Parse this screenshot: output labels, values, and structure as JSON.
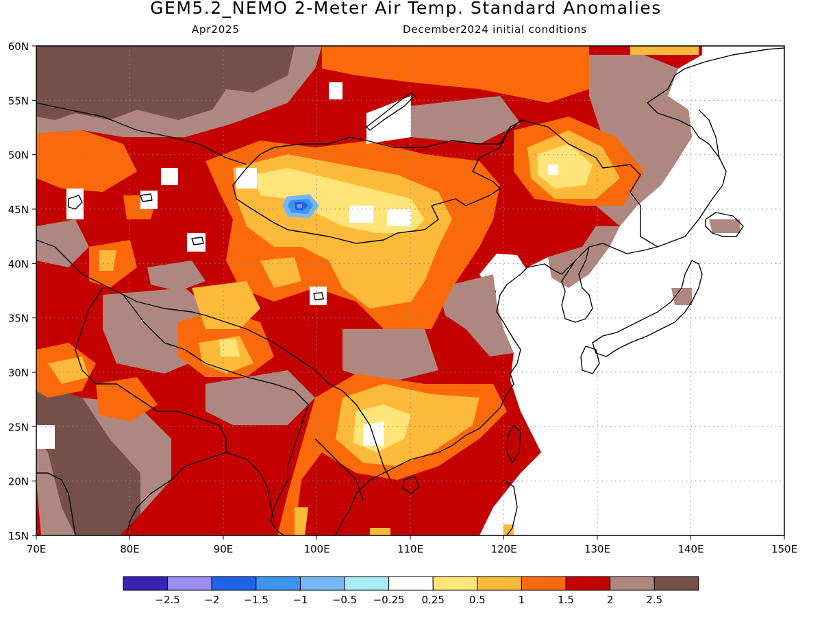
{
  "title": "GEM5.2_NEMO 2-Meter Air Temp. Standard Anomalies",
  "subtitle_left": "Apr2025",
  "subtitle_right": "December2024 initial conditions",
  "map": {
    "lon_range": [
      70,
      150
    ],
    "lat_range": [
      15,
      60
    ],
    "lon_labels": [
      "70E",
      "80E",
      "90E",
      "100E",
      "110E",
      "120E",
      "130E",
      "140E",
      "150E"
    ],
    "lat_labels": [
      "15N",
      "20N",
      "25N",
      "30N",
      "35N",
      "40N",
      "45N",
      "50N",
      "55N",
      "60N"
    ],
    "grid": "dotted"
  },
  "colorbar": {
    "labels": [
      "-2.5",
      "-2",
      "-1.5",
      "-1",
      "-0.5",
      "-0.25",
      "0.25",
      "0.5",
      "1",
      "1.5",
      "2",
      "2.5"
    ],
    "colors": [
      "#3a23b4",
      "#9b8ef2",
      "#1f64e6",
      "#3c93f2",
      "#78b8f4",
      "#a8ecf8",
      "#ffffff",
      "#ffe47a",
      "#fdb93a",
      "#fb6a0a",
      "#c40000",
      "#ae8880",
      "#745048"
    ]
  }
}
